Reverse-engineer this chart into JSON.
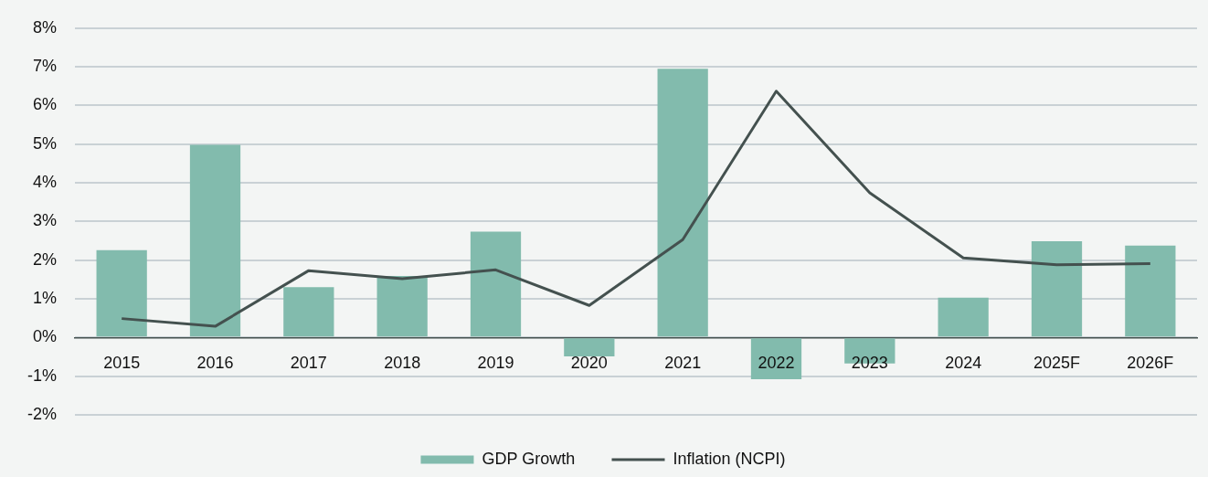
{
  "chart_data": {
    "type": "bar",
    "categories": [
      "2015",
      "2016",
      "2017",
      "2018",
      "2019",
      "2020",
      "2021",
      "2022",
      "2023",
      "2024",
      "2025F",
      "2026F"
    ],
    "series": [
      {
        "name": "GDP Growth",
        "type": "bar",
        "color": "#82bbad",
        "values": [
          2.26,
          4.98,
          1.3,
          1.59,
          2.74,
          -0.49,
          6.95,
          -1.08,
          -0.67,
          1.03,
          2.49,
          2.38
        ]
      },
      {
        "name": "Inflation (NCPI)",
        "type": "line",
        "color": "#44514f",
        "values": [
          0.49,
          0.29,
          1.73,
          1.52,
          1.75,
          0.83,
          2.53,
          6.37,
          3.74,
          2.06,
          1.88,
          1.91
        ]
      }
    ],
    "ylim": [
      -2,
      8
    ],
    "yticks": [
      {
        "value": -2,
        "label": "-2%"
      },
      {
        "value": -1,
        "label": "-1%"
      },
      {
        "value": 0,
        "label": "0%"
      },
      {
        "value": 1,
        "label": "1%"
      },
      {
        "value": 2,
        "label": "2%"
      },
      {
        "value": 3,
        "label": "3%"
      },
      {
        "value": 4,
        "label": "4%"
      },
      {
        "value": 5,
        "label": "5%"
      },
      {
        "value": 6,
        "label": "6%"
      },
      {
        "value": 7,
        "label": "7%"
      },
      {
        "value": 8,
        "label": "8%"
      }
    ],
    "grid": "y",
    "legend": "bottom",
    "marker": "none",
    "line_style": "solid"
  }
}
